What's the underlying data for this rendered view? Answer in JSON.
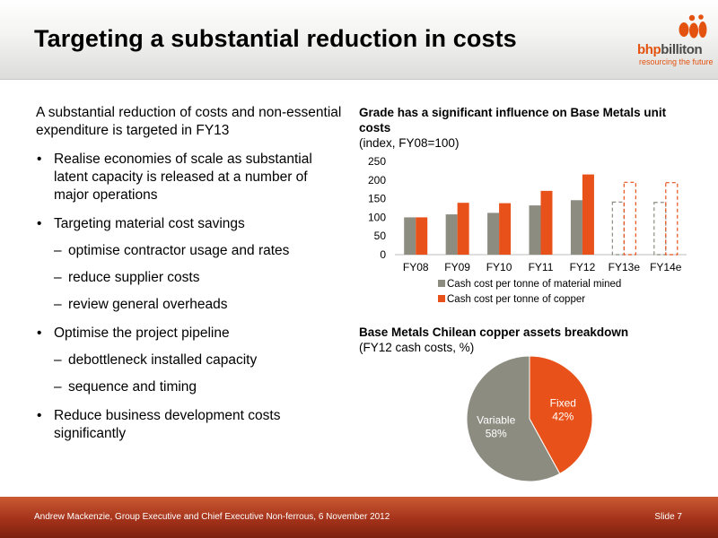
{
  "slide": {
    "title": "Targeting a substantial reduction in costs",
    "logo": {
      "wordmark_a": "bhp",
      "wordmark_b": "billiton",
      "tagline": "resourcing the future"
    },
    "intro": "A substantial reduction of costs and non-essential expenditure is targeted in FY13",
    "bullets": [
      {
        "text": "Realise economies of scale as substantial latent capacity is released at a number of major operations",
        "sub": []
      },
      {
        "text": "Targeting material cost savings",
        "sub": [
          "optimise contractor usage and rates",
          "reduce supplier costs",
          "review general overheads"
        ]
      },
      {
        "text": "Optimise the project pipeline",
        "sub": [
          "debottleneck installed capacity",
          "sequence and timing"
        ]
      },
      {
        "text": "Reduce business development costs significantly",
        "sub": []
      }
    ],
    "bullet_glyph": "•",
    "dash_glyph": "–",
    "footer": {
      "left": "Andrew Mackenzie, Group Executive and Chief Executive Non-ferrous, 6 November 2012",
      "right": "Slide 7"
    }
  },
  "chart_data": [
    {
      "type": "bar",
      "title": "Grade has a significant influence on Base Metals unit costs",
      "subtitle": "(index, FY08=100)",
      "categories": [
        "FY08",
        "FY09",
        "FY10",
        "FY11",
        "FY12",
        "FY13e",
        "FY14e"
      ],
      "estimated_categories": [
        "FY13e",
        "FY14e"
      ],
      "series": [
        {
          "name": "Cash cost per tonne of material mined",
          "color": "#8c8c81",
          "values": [
            100,
            108,
            112,
            132,
            146,
            141,
            140
          ]
        },
        {
          "name": "Cash cost per tonne of copper",
          "color": "#e8521a",
          "values": [
            100,
            139,
            138,
            171,
            215,
            194,
            193
          ]
        }
      ],
      "ylim": [
        0,
        250
      ],
      "yticks": [
        0,
        50,
        100,
        150,
        200,
        250
      ],
      "grid": false,
      "legend_position": "bottom"
    },
    {
      "type": "pie",
      "title": "Base Metals Chilean copper assets breakdown",
      "subtitle": "(FY12 cash costs, %)",
      "slices": [
        {
          "label": "Fixed",
          "value": 42,
          "display": "42%",
          "color": "#e8521a"
        },
        {
          "label": "Variable",
          "value": 58,
          "display": "58%",
          "color": "#8c8c81"
        }
      ]
    }
  ]
}
